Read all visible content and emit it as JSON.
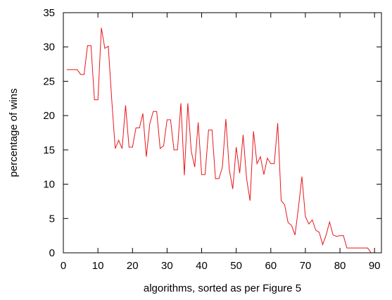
{
  "chart_data": {
    "type": "line",
    "title": "",
    "xlabel": "algorithms, sorted as per Figure 5",
    "ylabel": "percentage of wins",
    "xlim": [
      0,
      92
    ],
    "ylim": [
      0,
      35
    ],
    "xticks": [
      0,
      10,
      20,
      30,
      40,
      50,
      60,
      70,
      80,
      90
    ],
    "yticks": [
      0,
      5,
      10,
      15,
      20,
      25,
      30,
      35
    ],
    "grid": false,
    "legend": "none",
    "series": [
      {
        "color": "#e8161b",
        "x": [
          1,
          2,
          3,
          4,
          5,
          6,
          7,
          8,
          9,
          10,
          11,
          12,
          13,
          14,
          15,
          16,
          17,
          18,
          19,
          20,
          21,
          22,
          23,
          24,
          25,
          26,
          27,
          28,
          29,
          30,
          31,
          32,
          33,
          34,
          35,
          36,
          37,
          38,
          39,
          40,
          41,
          42,
          43,
          44,
          45,
          46,
          47,
          48,
          49,
          50,
          51,
          52,
          53,
          54,
          55,
          56,
          57,
          58,
          59,
          60,
          61,
          62,
          63,
          64,
          65,
          66,
          67,
          68,
          69,
          70,
          71,
          72,
          73,
          74,
          75,
          76,
          77,
          78,
          79,
          80,
          81,
          82,
          83,
          84,
          85,
          86,
          87,
          88,
          89
        ],
        "y": [
          26.7,
          26.7,
          26.7,
          26.7,
          26.0,
          26.0,
          30.2,
          30.2,
          22.3,
          22.3,
          32.8,
          29.8,
          30.1,
          22.3,
          15.2,
          16.4,
          15.2,
          21.5,
          15.4,
          15.4,
          18.2,
          18.2,
          20.3,
          14.0,
          18.8,
          20.6,
          20.6,
          15.2,
          15.6,
          19.4,
          19.4,
          15.0,
          15.0,
          21.8,
          11.3,
          21.8,
          14.8,
          12.5,
          19.0,
          11.4,
          11.4,
          17.9,
          17.9,
          10.8,
          10.8,
          12.5,
          19.5,
          12.1,
          9.3,
          15.4,
          11.6,
          17.2,
          10.8,
          7.6,
          17.7,
          13.0,
          14.0,
          11.4,
          13.8,
          13.0,
          13.0,
          18.9,
          7.6,
          7.0,
          4.4,
          4.0,
          2.6,
          6.6,
          11.1,
          5.3,
          4.2,
          4.8,
          3.3,
          3.0,
          1.2,
          2.6,
          4.5,
          2.6,
          2.4,
          2.5,
          2.5,
          0.7,
          0.7,
          0.7,
          0.7,
          0.7,
          0.7,
          0.7,
          0.0
        ]
      }
    ]
  }
}
